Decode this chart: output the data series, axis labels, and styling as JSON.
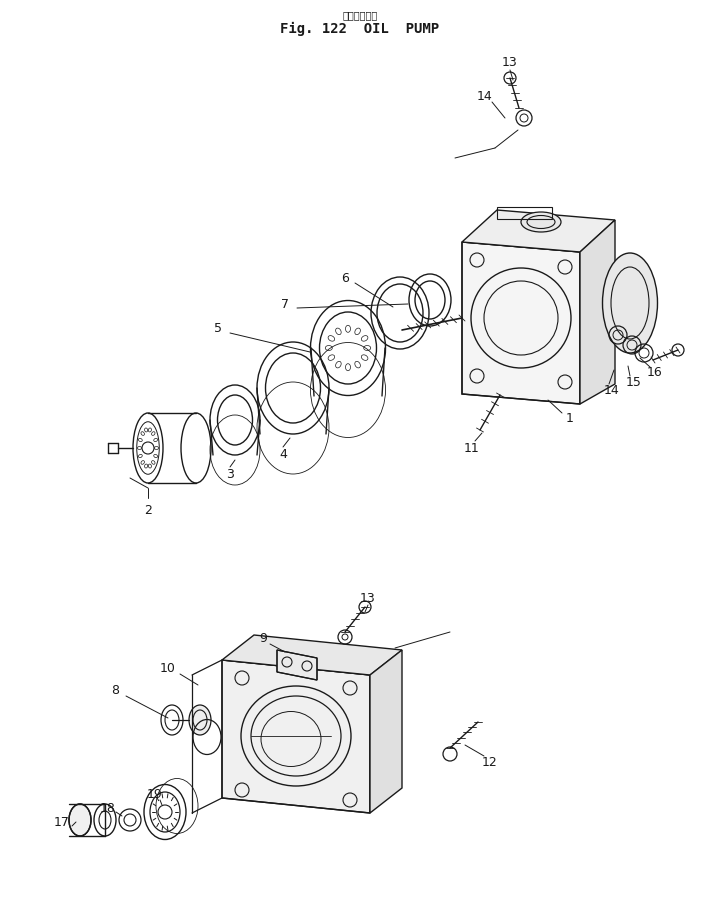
{
  "title_japanese": "オイルポンプ",
  "title_english": "Fig. 122  OIL  PUMP",
  "bg_color": "#ffffff",
  "line_color": "#1a1a1a",
  "label_fontsize": 9,
  "title_fontsize": 11
}
